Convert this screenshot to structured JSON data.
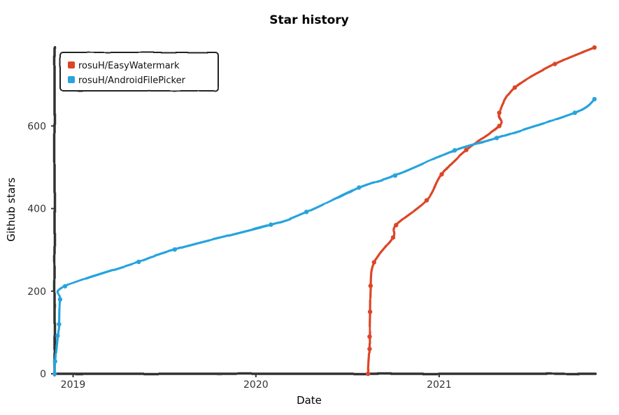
{
  "chart_data": {
    "type": "line",
    "title": "Star history",
    "xlabel": "Date",
    "ylabel": "Github stars",
    "x_type": "date",
    "xlim": [
      "2018-11-25",
      "2021-11-10"
    ],
    "ylim": [
      0,
      790
    ],
    "x_ticks": [
      {
        "date": "2019-01-01",
        "label": "2019"
      },
      {
        "date": "2020-01-01",
        "label": "2020"
      },
      {
        "date": "2021-01-01",
        "label": "2021"
      }
    ],
    "y_ticks": [
      0,
      200,
      400,
      600
    ],
    "grid": false,
    "legend_position": "top-left",
    "series": [
      {
        "name": "rosuH/EasyWatermark",
        "color": "#dd4528",
        "points": [
          [
            "2020-08-12",
            0
          ],
          [
            "2020-08-15",
            60
          ],
          [
            "2020-08-15",
            90
          ],
          [
            "2020-08-16",
            150
          ],
          [
            "2020-08-17",
            213
          ],
          [
            "2020-08-24",
            270
          ],
          [
            "2020-10-01",
            330
          ],
          [
            "2020-10-07",
            360
          ],
          [
            "2020-12-07",
            420
          ],
          [
            "2021-01-06",
            483
          ],
          [
            "2021-02-24",
            542
          ],
          [
            "2021-05-01",
            600
          ],
          [
            "2021-05-01",
            632
          ],
          [
            "2021-06-01",
            693
          ],
          [
            "2021-08-20",
            750
          ],
          [
            "2021-11-07",
            790
          ]
        ]
      },
      {
        "name": "rosuH/AndroidFilePicker",
        "color": "#28a3dd",
        "points": [
          [
            "2018-11-25",
            0
          ],
          [
            "2018-11-26",
            30
          ],
          [
            "2018-12-01",
            92
          ],
          [
            "2018-12-04",
            120
          ],
          [
            "2018-12-06",
            180
          ],
          [
            "2018-12-16",
            212
          ],
          [
            "2019-05-12",
            271
          ],
          [
            "2019-07-23",
            301
          ],
          [
            "2020-01-31",
            361
          ],
          [
            "2020-04-11",
            392
          ],
          [
            "2020-07-25",
            451
          ],
          [
            "2020-10-05",
            480
          ],
          [
            "2021-02-01",
            541
          ],
          [
            "2021-04-26",
            571
          ],
          [
            "2021-09-29",
            632
          ],
          [
            "2021-11-07",
            665
          ]
        ]
      }
    ]
  }
}
